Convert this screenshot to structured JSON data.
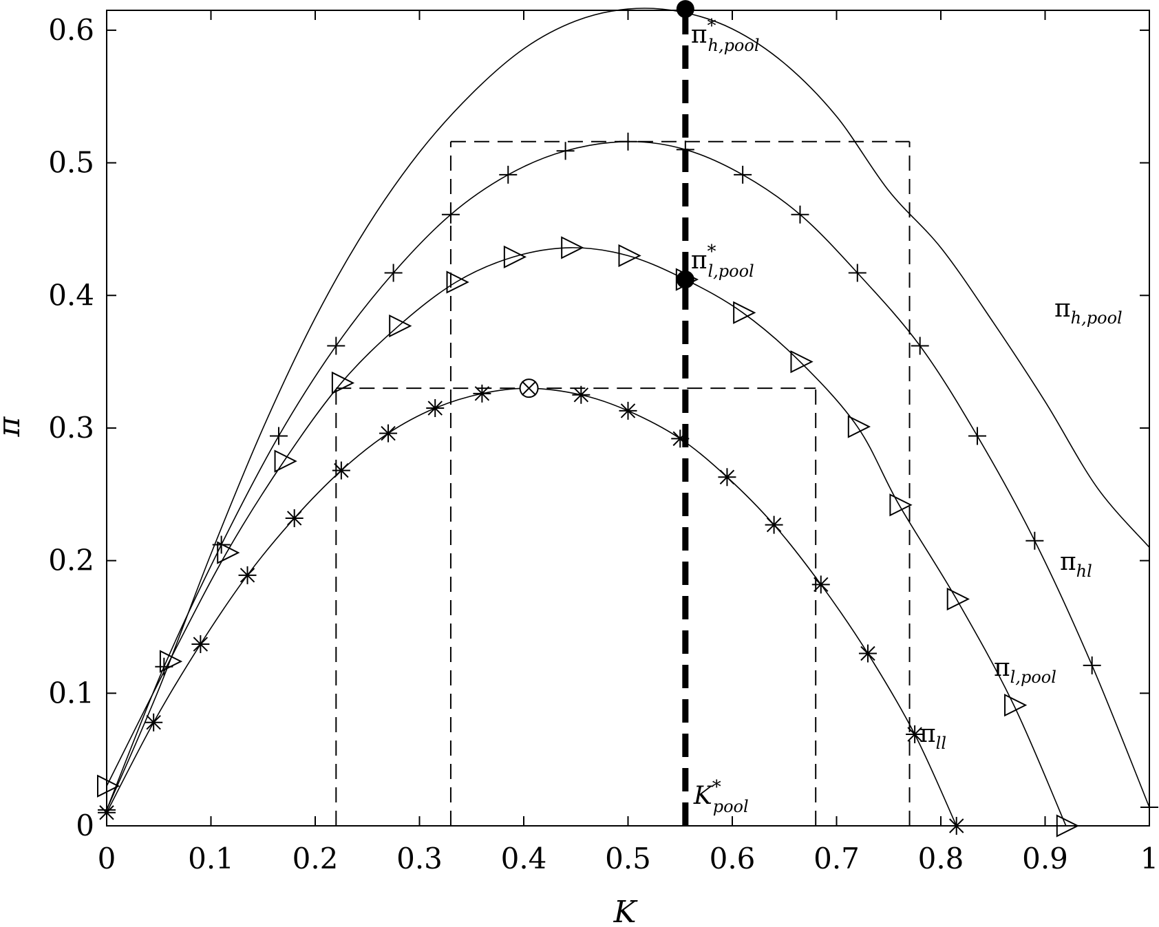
{
  "chart_data": {
    "type": "line",
    "title": "",
    "xlabel": "K",
    "ylabel": "π",
    "xlim": [
      0,
      1
    ],
    "ylim": [
      0,
      0.615
    ],
    "grid": false,
    "x_ticks": [
      "0",
      "0.1",
      "0.2",
      "0.3",
      "0.4",
      "0.5",
      "0.6",
      "0.7",
      "0.8",
      "0.9",
      "1"
    ],
    "y_ticks": [
      "0",
      "0.1",
      "0.2",
      "0.3",
      "0.4",
      "0.5",
      "0.6"
    ],
    "series": [
      {
        "name": "π_{h,pool}",
        "marker": "none",
        "x": [
          0,
          0.05,
          0.1,
          0.15,
          0.2,
          0.25,
          0.3,
          0.35,
          0.4,
          0.45,
          0.5,
          0.55,
          0.6,
          0.65,
          0.7,
          0.75,
          0.8,
          0.85,
          0.9,
          0.95,
          1.0
        ],
        "y": [
          0.012,
          0.103,
          0.205,
          0.3,
          0.383,
          0.452,
          0.508,
          0.552,
          0.586,
          0.607,
          0.616,
          0.614,
          0.601,
          0.575,
          0.535,
          0.479,
          0.436,
          0.38,
          0.32,
          0.255,
          0.21
        ]
      },
      {
        "name": "π_{hl}",
        "marker": "plus",
        "x": [
          0,
          0.055,
          0.11,
          0.165,
          0.22,
          0.275,
          0.33,
          0.385,
          0.44,
          0.5,
          0.555,
          0.61,
          0.665,
          0.72,
          0.78,
          0.835,
          0.89,
          0.945,
          1.0
        ],
        "y": [
          0.012,
          0.12,
          0.212,
          0.294,
          0.362,
          0.417,
          0.461,
          0.491,
          0.509,
          0.516,
          0.51,
          0.491,
          0.461,
          0.417,
          0.362,
          0.294,
          0.215,
          0.121,
          0.014
        ]
      },
      {
        "name": "π_{l,pool}",
        "marker": "triangle-right",
        "x": [
          0,
          0.06,
          0.115,
          0.17,
          0.225,
          0.28,
          0.335,
          0.39,
          0.445,
          0.5,
          0.555,
          0.61,
          0.665,
          0.72,
          0.76,
          0.815,
          0.87,
          0.92
        ],
        "y": [
          0.03,
          0.124,
          0.206,
          0.275,
          0.334,
          0.377,
          0.41,
          0.429,
          0.436,
          0.43,
          0.412,
          0.387,
          0.35,
          0.301,
          0.242,
          0.171,
          0.091,
          0.0
        ]
      },
      {
        "name": "π_{ll}",
        "marker": "asterisk",
        "x": [
          0,
          0.045,
          0.09,
          0.135,
          0.18,
          0.225,
          0.27,
          0.315,
          0.36,
          0.405,
          0.455,
          0.5,
          0.55,
          0.595,
          0.64,
          0.685,
          0.73,
          0.775,
          0.815
        ],
        "y": [
          0.01,
          0.078,
          0.137,
          0.189,
          0.232,
          0.268,
          0.296,
          0.315,
          0.326,
          0.33,
          0.325,
          0.313,
          0.292,
          0.263,
          0.227,
          0.182,
          0.13,
          0.069,
          0.0
        ]
      }
    ],
    "annotations": [
      {
        "text": "π",
        "sup": "*",
        "sub": "h,pool",
        "x": 0.555,
        "y": 0.616
      },
      {
        "text": "π",
        "sup": "*",
        "sub": "l,pool",
        "x": 0.555,
        "y": 0.412
      },
      {
        "text": "K",
        "sup": "*",
        "sub": "pool",
        "x": 0.555,
        "y": 0.0
      }
    ],
    "markers_special": [
      {
        "type": "filled-circle",
        "x": 0.555,
        "y": 0.616
      },
      {
        "type": "filled-circle",
        "x": 0.555,
        "y": 0.412
      },
      {
        "type": "circled-cross",
        "x": 0.405,
        "y": 0.33
      }
    ],
    "reference_lines": {
      "thick_vertical_x": 0.555,
      "dashed_hlines": [
        {
          "y": 0.516,
          "x_from": 0.33,
          "x_to": 0.77
        },
        {
          "y": 0.33,
          "x_from": 0.22,
          "x_to": 0.68
        }
      ],
      "dashed_vlines": [
        {
          "x": 0.33,
          "y_to": 0.516
        },
        {
          "x": 0.77,
          "y_to": 0.516
        },
        {
          "x": 0.22,
          "y_to": 0.33
        },
        {
          "x": 0.68,
          "y_to": 0.33
        }
      ]
    },
    "curve_labels": [
      {
        "text": "π",
        "sub": "h,pool",
        "x": 1.015,
        "y": 0.385
      },
      {
        "text": "π",
        "sub": "hl",
        "x": 1.015,
        "y": 0.195
      },
      {
        "text": "π",
        "sub": "l,pool",
        "x": 0.855,
        "y": 0.115
      },
      {
        "text": "π",
        "sub": "ll",
        "x": 0.78,
        "y": 0.068
      }
    ]
  }
}
